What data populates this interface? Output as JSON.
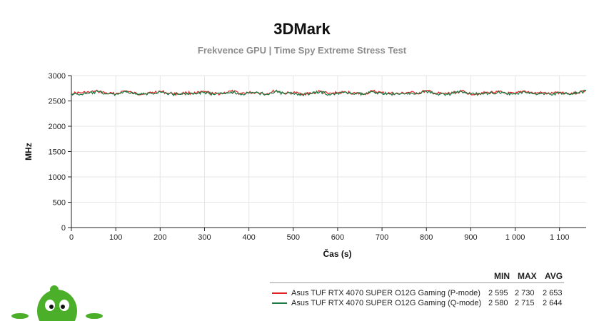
{
  "chart_data": {
    "type": "line",
    "title": "3DMark",
    "subtitle": "Frekvence GPU | Time Spy Extreme Stress Test",
    "xlabel": "Čas (s)",
    "ylabel": "MHz",
    "xlim": [
      0,
      1160
    ],
    "ylim": [
      0,
      3000
    ],
    "x_ticks": [
      0,
      100,
      200,
      300,
      400,
      500,
      600,
      700,
      800,
      900,
      1000,
      1100
    ],
    "x_tick_labels": [
      "0",
      "100",
      "200",
      "300",
      "400",
      "500",
      "600",
      "700",
      "800",
      "900",
      "1 000",
      "1 100"
    ],
    "y_ticks": [
      0,
      500,
      1000,
      1500,
      2000,
      2500,
      3000
    ],
    "y_tick_labels": [
      "0",
      "500",
      "1000",
      "1500",
      "2000",
      "2500",
      "3000"
    ],
    "grid": true,
    "legend_position": "bottom-right",
    "series": [
      {
        "name": "Asus TUF RTX 4070 SUPER O12G Gaming (P-mode)",
        "color": "#e02020",
        "min": 2595,
        "max": 2730,
        "avg": 2653,
        "x": [
          0,
          20,
          40,
          60,
          80,
          100,
          120,
          140,
          160,
          180,
          200,
          220,
          240,
          260,
          280,
          300,
          320,
          340,
          360,
          380,
          400,
          420,
          440,
          460,
          480,
          500,
          520,
          540,
          560,
          580,
          600,
          620,
          640,
          660,
          680,
          700,
          720,
          740,
          760,
          780,
          800,
          820,
          840,
          860,
          880,
          900,
          920,
          940,
          960,
          980,
          1000,
          1020,
          1040,
          1060,
          1080,
          1100,
          1120,
          1140,
          1160
        ],
        "values": [
          2650,
          2660,
          2670,
          2690,
          2650,
          2640,
          2700,
          2650,
          2640,
          2660,
          2690,
          2650,
          2640,
          2660,
          2650,
          2680,
          2640,
          2650,
          2690,
          2650,
          2660,
          2670,
          2640,
          2700,
          2650,
          2660,
          2640,
          2650,
          2690,
          2640,
          2660,
          2670,
          2650,
          2640,
          2690,
          2660,
          2650,
          2640,
          2670,
          2650,
          2700,
          2650,
          2640,
          2660,
          2690,
          2640,
          2650,
          2660,
          2680,
          2650,
          2640,
          2700,
          2650,
          2660,
          2640,
          2670,
          2650,
          2660,
          2710
        ]
      },
      {
        "name": "Asus TUF RTX 4070 SUPER O12G Gaming (Q-mode)",
        "color": "#1a7a42",
        "min": 2580,
        "max": 2715,
        "avg": 2644,
        "x": [
          0,
          20,
          40,
          60,
          80,
          100,
          120,
          140,
          160,
          180,
          200,
          220,
          240,
          260,
          280,
          300,
          320,
          340,
          360,
          380,
          400,
          420,
          440,
          460,
          480,
          500,
          520,
          540,
          560,
          580,
          600,
          620,
          640,
          660,
          680,
          700,
          720,
          740,
          760,
          780,
          800,
          820,
          840,
          860,
          880,
          900,
          920,
          940,
          960,
          980,
          1000,
          1020,
          1040,
          1060,
          1080,
          1100,
          1120,
          1140,
          1160
        ],
        "values": [
          2640,
          2630,
          2650,
          2680,
          2640,
          2630,
          2690,
          2640,
          2630,
          2650,
          2680,
          2640,
          2630,
          2650,
          2640,
          2670,
          2630,
          2640,
          2680,
          2640,
          2650,
          2660,
          2630,
          2690,
          2640,
          2650,
          2630,
          2640,
          2680,
          2630,
          2650,
          2660,
          2640,
          2630,
          2680,
          2650,
          2640,
          2630,
          2660,
          2640,
          2690,
          2640,
          2630,
          2650,
          2680,
          2630,
          2640,
          2650,
          2670,
          2640,
          2630,
          2690,
          2640,
          2650,
          2630,
          2660,
          2640,
          2650,
          2700
        ]
      }
    ]
  },
  "legend": {
    "min_label": "MIN",
    "max_label": "MAX",
    "avg_label": "AVG",
    "rows": [
      {
        "name": "Asus TUF RTX 4070 SUPER O12G Gaming (P-mode)",
        "min": "2 595",
        "max": "2 730",
        "avg": "2 653",
        "color": "#e02020"
      },
      {
        "name": "Asus TUF RTX 4070 SUPER O12G Gaming (Q-mode)",
        "min": "2 580",
        "max": "2 715",
        "avg": "2 644",
        "color": "#1a7a42"
      }
    ]
  },
  "mascot": {
    "icon": "green-alien-mascot-icon",
    "color": "#4caf2a"
  }
}
